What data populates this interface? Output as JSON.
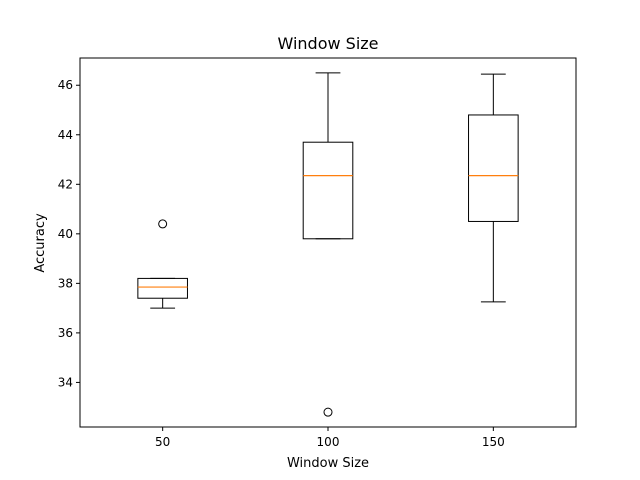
{
  "chart_data": {
    "type": "box",
    "title": "Window Size",
    "xlabel": "Window Size",
    "ylabel": "Accuracy",
    "categories": [
      "50",
      "100",
      "150"
    ],
    "ylim": [
      32.2,
      47.1
    ],
    "yticks": [
      34,
      36,
      38,
      40,
      42,
      44,
      46
    ],
    "grid": false,
    "boxes": [
      {
        "category": "50",
        "whisker_low": 37.0,
        "q1": 37.4,
        "median": 37.85,
        "q3": 38.2,
        "whisker_high": 38.2,
        "outliers": [
          40.4
        ]
      },
      {
        "category": "100",
        "whisker_low": 39.8,
        "q1": 39.8,
        "median": 42.35,
        "q3": 43.7,
        "whisker_high": 46.5,
        "outliers": [
          32.8
        ]
      },
      {
        "category": "150",
        "whisker_low": 37.25,
        "q1": 40.5,
        "median": 42.35,
        "q3": 44.8,
        "whisker_high": 46.45,
        "outliers": []
      }
    ],
    "colors": {
      "box": "#000000",
      "median": "#ff7f0e"
    }
  }
}
